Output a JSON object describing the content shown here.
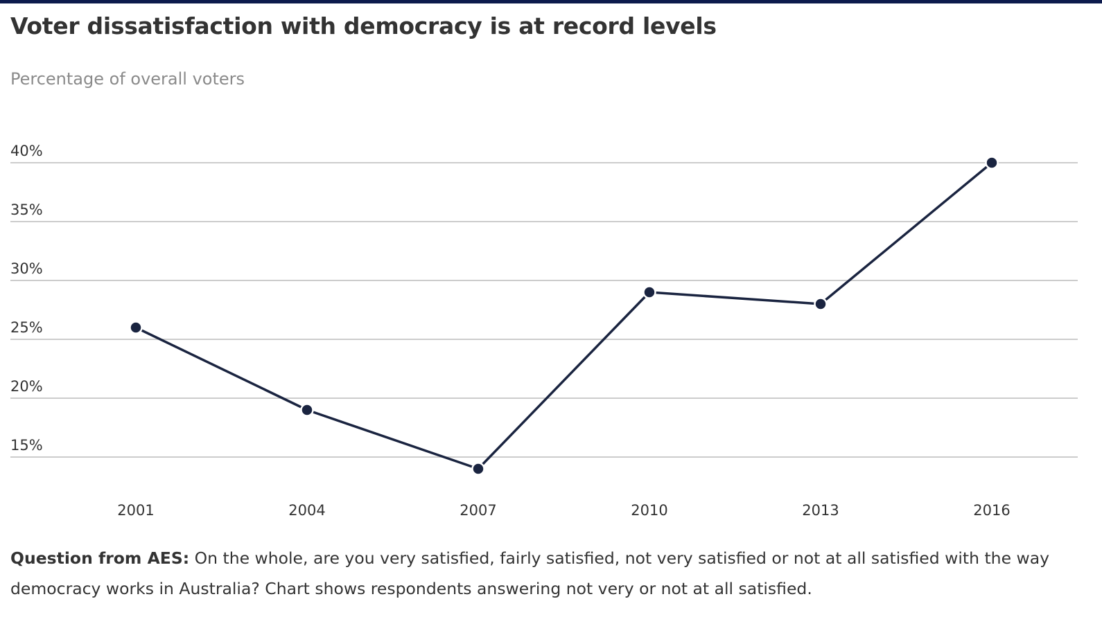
{
  "header": {
    "title": "Voter dissatisfaction with democracy is at record levels",
    "subtitle": "Percentage of overall voters"
  },
  "footnote": {
    "label": "Question from AES:",
    "text": " On the whole, are you very satisfied, fairly satisfied, not very satisfied or not at all satisfied with the way democracy works in Australia? Chart shows respondents answering not very or not at all satisfied."
  },
  "colors": {
    "line": "#1a2440",
    "grid": "#bbbbbb",
    "top_bar": "#0d1b4d"
  },
  "chart_data": {
    "type": "line",
    "title": "Voter dissatisfaction with democracy is at record levels",
    "subtitle": "Percentage of overall voters",
    "xlabel": "",
    "ylabel": "",
    "x": [
      "2001",
      "2004",
      "2007",
      "2010",
      "2013",
      "2016"
    ],
    "series": [
      {
        "values": [
          26,
          19,
          14,
          29,
          28,
          40
        ]
      }
    ],
    "yticks": [
      15,
      20,
      25,
      30,
      35,
      40
    ],
    "ytick_labels": [
      "15%",
      "20%",
      "25%",
      "30%",
      "35%",
      "40%"
    ],
    "ylim": [
      12,
      40
    ],
    "grid": true,
    "legend": "none"
  }
}
